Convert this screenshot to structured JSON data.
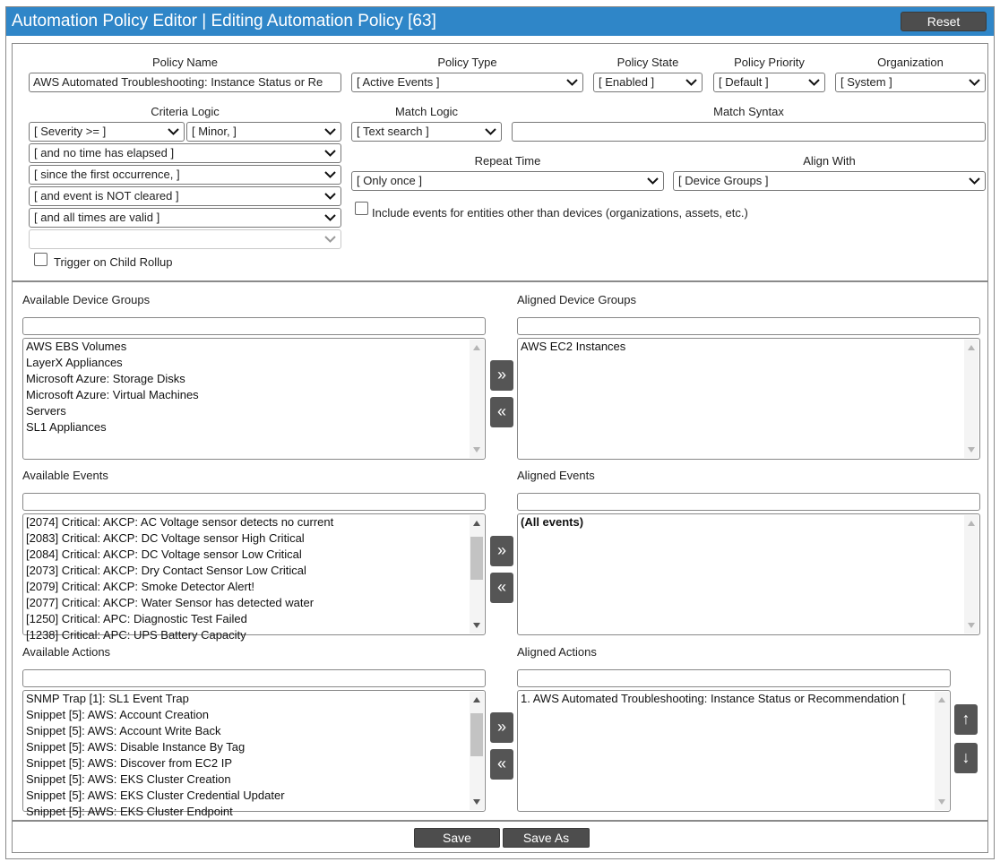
{
  "window": {
    "title": "Automation Policy Editor | Editing Automation Policy [63]",
    "reset_label": "Reset"
  },
  "policy": {
    "name_label": "Policy Name",
    "name_value": "AWS Automated Troubleshooting: Instance Status or Re",
    "type_label": "Policy Type",
    "type_value": "[ Active Events ]",
    "state_label": "Policy State",
    "state_value": "[ Enabled ]",
    "priority_label": "Policy Priority",
    "priority_value": "[ Default ]",
    "organization_label": "Organization",
    "organization_value": "[ System ]"
  },
  "criteria": {
    "label": "Criteria Logic",
    "severity_operator": "[ Severity >= ]",
    "severity_value": "[ Minor, ]",
    "time_elapsed": "[ and no time has elapsed ]",
    "occurrence": "[ since the first occurrence, ]",
    "cleared": "[ and event is NOT cleared ]",
    "times_valid": "[ and all times are valid ]",
    "extra": "",
    "trigger_child_rollup_label": "Trigger on Child Rollup"
  },
  "match": {
    "logic_label": "Match Logic",
    "logic_value": "[ Text search ]",
    "syntax_label": "Match Syntax",
    "syntax_value": ""
  },
  "repeat": {
    "label": "Repeat Time",
    "value": "[ Only once ]"
  },
  "align": {
    "label": "Align With",
    "value": "[ Device Groups ]"
  },
  "include_entities_label": "Include events for entities other than devices (organizations, assets, etc.)",
  "device_groups": {
    "available_label": "Available Device Groups",
    "aligned_label": "Aligned Device Groups",
    "available": [
      "AWS EBS Volumes",
      "LayerX Appliances",
      "Microsoft Azure: Storage Disks",
      "Microsoft Azure: Virtual Machines",
      "Servers",
      "SL1 Appliances"
    ],
    "aligned": [
      "AWS EC2 Instances"
    ]
  },
  "events": {
    "available_label": "Available Events",
    "aligned_label": "Aligned Events",
    "available": [
      "[2074] Critical: AKCP: AC Voltage sensor detects no current",
      "[2083] Critical: AKCP: DC Voltage sensor High Critical",
      "[2084] Critical: AKCP: DC Voltage sensor Low Critical",
      "[2073] Critical: AKCP: Dry Contact Sensor Low Critical",
      "[2079] Critical: AKCP: Smoke Detector Alert!",
      "[2077] Critical: AKCP: Water Sensor has detected water",
      "[1250] Critical: APC: Diagnostic Test Failed",
      "[1238] Critical: APC: UPS Battery Capacity"
    ],
    "aligned": [
      "(All events)"
    ]
  },
  "actions": {
    "available_label": "Available Actions",
    "aligned_label": "Aligned Actions",
    "available": [
      "SNMP Trap [1]: SL1 Event Trap",
      "Snippet [5]: AWS: Account Creation",
      "Snippet [5]: AWS: Account Write Back",
      "Snippet [5]: AWS: Disable Instance By Tag",
      "Snippet [5]: AWS: Discover from EC2 IP",
      "Snippet [5]: AWS: EKS Cluster Creation",
      "Snippet [5]: AWS: EKS Cluster Credential Updater",
      "Snippet [5]: AWS: EKS Cluster Endpoint"
    ],
    "aligned": [
      "1. AWS Automated Troubleshooting: Instance Status or Recommendation ["
    ]
  },
  "buttons": {
    "add": "»",
    "remove": "«",
    "up": "↑",
    "down": "↓",
    "save": "Save",
    "save_as": "Save As"
  }
}
